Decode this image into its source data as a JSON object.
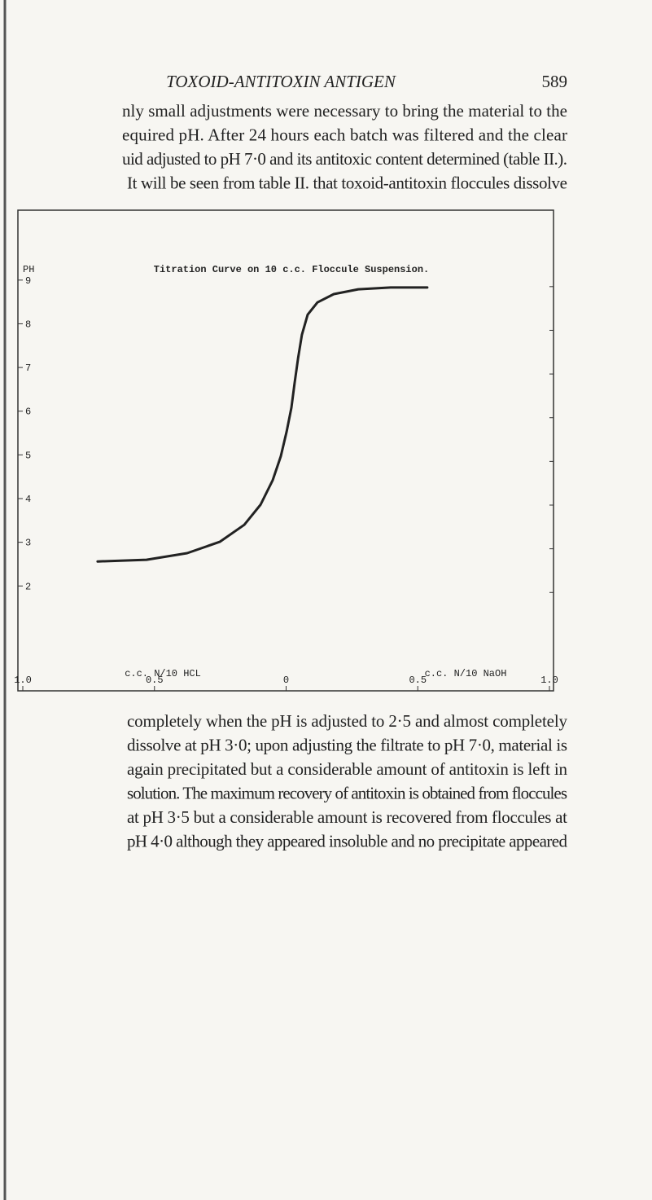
{
  "header": {
    "title": "TOXOID-ANTITOXIN ANTIGEN",
    "page_number": "589"
  },
  "paragraphs_before": [
    "nly small adjustments were necessary to bring the material to the",
    "equired pH. After 24 hours each batch was filtered and the clear",
    "uid adjusted to pH 7·0 and its antitoxic content determined (table II.).",
    "It will be seen from table II. that toxoid-antitoxin floccules dissolve"
  ],
  "chart_data": {
    "type": "line",
    "title": "Titration Curve on 10 c.c. Floccule Suspension.",
    "y_label": "PH",
    "annotations": [
      "c.c. N/10 HCL",
      "c.c. N/10 NaOH"
    ],
    "x": [
      -0.716,
      -0.53,
      -0.376,
      -0.252,
      -0.159,
      -0.097,
      -0.051,
      -0.02,
      0.002,
      0.02,
      0.032,
      0.045,
      0.06,
      0.082,
      0.119,
      0.181,
      0.274,
      0.397,
      0.536
    ],
    "series": [
      {
        "color": "#222222",
        "values": [
          2.56,
          2.6,
          2.75,
          3.01,
          3.4,
          3.86,
          4.42,
          4.97,
          5.53,
          6.08,
          6.64,
          7.2,
          7.75,
          8.21,
          8.49,
          8.68,
          8.79,
          8.83,
          8.83
        ]
      }
    ],
    "xlim": [
      -1.0,
      1.0
    ],
    "xticks": [
      {
        "value": -1.0,
        "label": "1.0"
      },
      {
        "value": -0.5,
        "label": "0.5"
      },
      0,
      0.5,
      {
        "value": 1.0,
        "label": "1.0"
      }
    ],
    "ylim": [
      -0.4,
      10.6
    ],
    "yticks": [
      2,
      3,
      4,
      5,
      6,
      7,
      8,
      9
    ]
  },
  "paragraphs_after": [
    "completely when the pH is adjusted to 2·5 and almost completely",
    "dissolve at pH 3·0; upon adjusting the filtrate to pH 7·0, material is",
    "again precipitated but a considerable amount of antitoxin is left in",
    "solution. The maximum recovery of antitoxin is obtained from floccules",
    "at pH 3·5 but a considerable amount is recovered from floccules at",
    "pH 4·0 although they appeared insoluble and no precipitate appeared"
  ]
}
